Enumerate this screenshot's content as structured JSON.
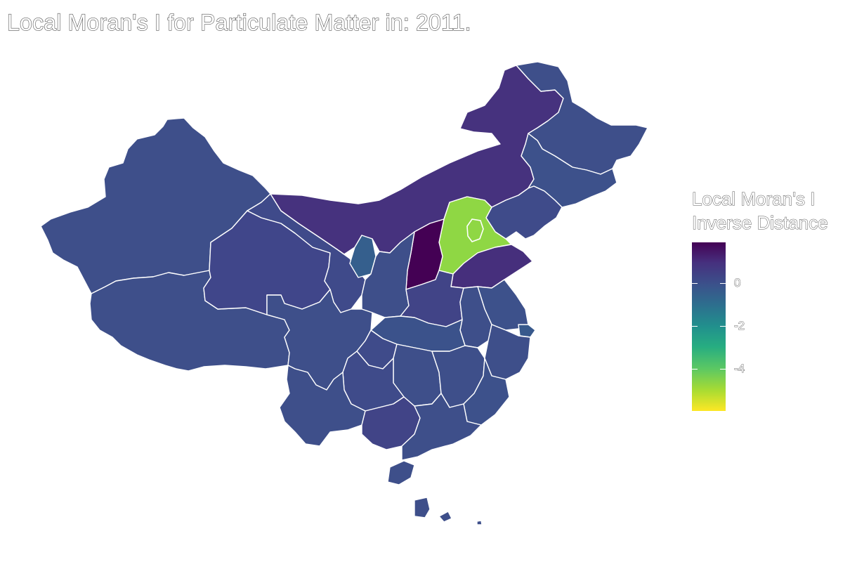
{
  "title": "Local Moran's I for Particulate Matter in: 2011.",
  "legend": {
    "title_line1": "Local Moran's I",
    "title_line2": "Inverse Distance",
    "ticks": [
      "0",
      "-2",
      "-4"
    ],
    "range": [
      -5.8,
      1.9
    ],
    "colors": [
      "#440154",
      "#46307e",
      "#3b518b",
      "#2c718e",
      "#21908d",
      "#27ad81",
      "#5cc863",
      "#aadc32",
      "#fde725"
    ]
  },
  "map_data": {
    "type": "choropleth",
    "regions": [
      {
        "name": "Xinjiang",
        "value": 0.2,
        "color": "#3e4f8a"
      },
      {
        "name": "Tibet",
        "value": 0.3,
        "color": "#3e4f8a"
      },
      {
        "name": "Qinghai",
        "value": 0.4,
        "color": "#40468a"
      },
      {
        "name": "Gansu",
        "value": 0.4,
        "color": "#3f4a8a"
      },
      {
        "name": "Inner Mongolia",
        "value": 1.0,
        "color": "#46327e"
      },
      {
        "name": "Heilongjiang",
        "value": 0.2,
        "color": "#3e4f8a"
      },
      {
        "name": "Jilin",
        "value": 0.1,
        "color": "#3d518b"
      },
      {
        "name": "Liaoning",
        "value": 0.3,
        "color": "#3f4b8a"
      },
      {
        "name": "Hebei",
        "value": -4.9,
        "color": "#8fd744"
      },
      {
        "name": "Shanxi",
        "value": 1.9,
        "color": "#440154"
      },
      {
        "name": "Shandong",
        "value": 1.1,
        "color": "#462f7c"
      },
      {
        "name": "Ningxia",
        "value": -0.5,
        "color": "#355f8d"
      },
      {
        "name": "Shaanxi",
        "value": 0.2,
        "color": "#3e4f8a"
      },
      {
        "name": "Henan",
        "value": 0.5,
        "color": "#414487"
      },
      {
        "name": "Sichuan",
        "value": 0.2,
        "color": "#3e4f8a"
      },
      {
        "name": "Chongqing",
        "value": 0.3,
        "color": "#3f4b8a"
      },
      {
        "name": "Hubei",
        "value": 0.0,
        "color": "#3b528b"
      },
      {
        "name": "Anhui",
        "value": 0.2,
        "color": "#3e4f8a"
      },
      {
        "name": "Jiangsu",
        "value": 0.1,
        "color": "#3d518b"
      },
      {
        "name": "Shanghai",
        "value": -0.3,
        "color": "#38598c"
      },
      {
        "name": "Zhejiang",
        "value": 0.2,
        "color": "#3e4f8a"
      },
      {
        "name": "Yunnan",
        "value": 0.2,
        "color": "#3e4f8a"
      },
      {
        "name": "Guizhou",
        "value": 0.3,
        "color": "#3f4b8a"
      },
      {
        "name": "Hunan",
        "value": 0.2,
        "color": "#3e4f8a"
      },
      {
        "name": "Jiangxi",
        "value": 0.2,
        "color": "#3e4f8a"
      },
      {
        "name": "Fujian",
        "value": 0.1,
        "color": "#3d518b"
      },
      {
        "name": "Guangxi",
        "value": 0.5,
        "color": "#414487"
      },
      {
        "name": "Guangdong",
        "value": 0.2,
        "color": "#3e4f8a"
      },
      {
        "name": "Hainan",
        "value": 0.2,
        "color": "#3e4f8a"
      },
      {
        "name": "Taiwan",
        "value": 0.2,
        "color": "#3e4f8a"
      }
    ]
  }
}
